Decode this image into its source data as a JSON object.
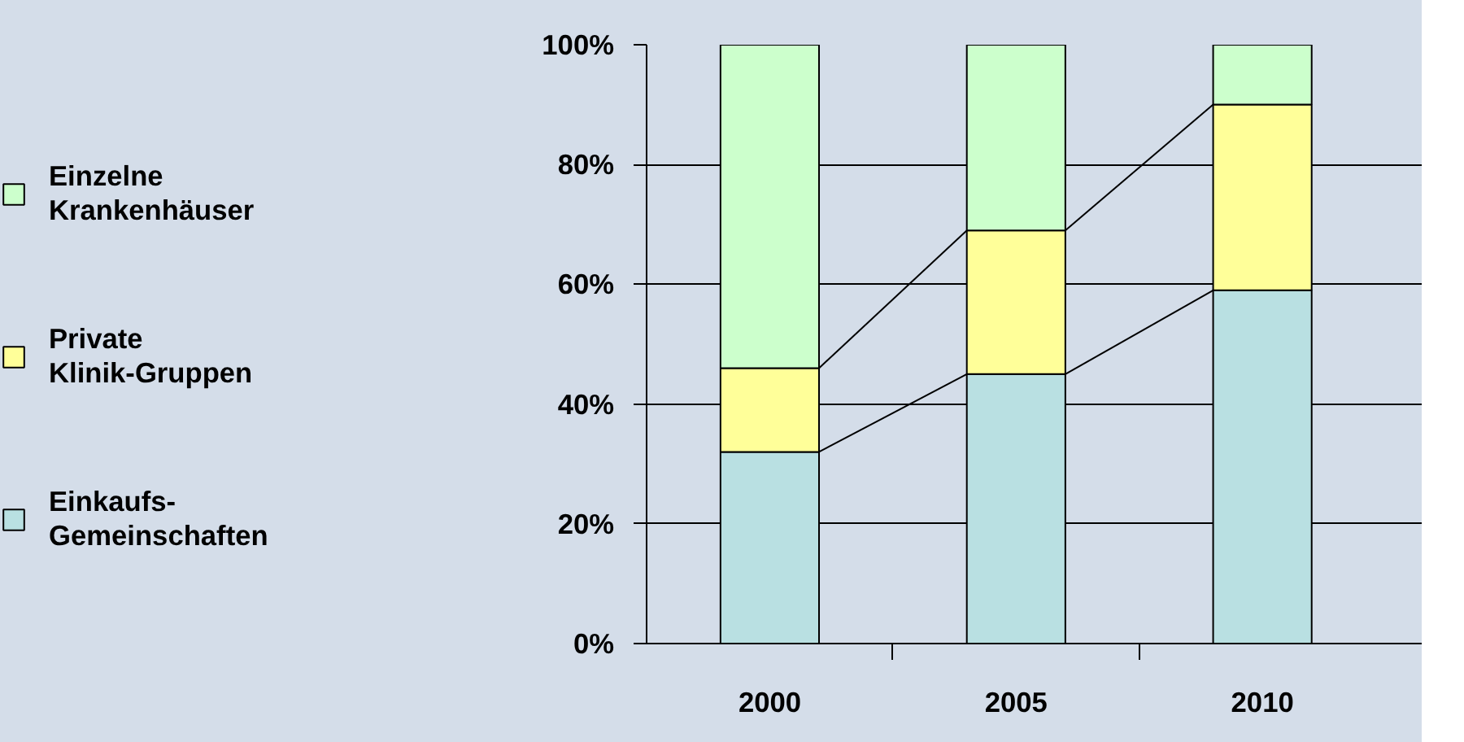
{
  "chart_data": {
    "type": "bar",
    "stacked": true,
    "categories": [
      "2000",
      "2005",
      "2010"
    ],
    "series": [
      {
        "name": "Einkaufs-Gemeinschaften",
        "color": "#b9e0e2",
        "values": [
          32,
          45,
          59
        ]
      },
      {
        "name": "Private Klinik-Gruppen",
        "color": "#ffff99",
        "values": [
          14,
          24,
          31
        ]
      },
      {
        "name": "Einzelne Krankenhäuser",
        "color": "#ccffcc",
        "values": [
          54,
          31,
          10
        ]
      }
    ],
    "ylim": [
      0,
      100
    ],
    "yticks": [
      {
        "value": 0,
        "label": "0%"
      },
      {
        "value": 20,
        "label": "20%"
      },
      {
        "value": 40,
        "label": "40%"
      },
      {
        "value": 60,
        "label": "60%"
      },
      {
        "value": 80,
        "label": "80%"
      },
      {
        "value": 100,
        "label": "100%"
      }
    ],
    "grid": "y",
    "legend": "left"
  }
}
